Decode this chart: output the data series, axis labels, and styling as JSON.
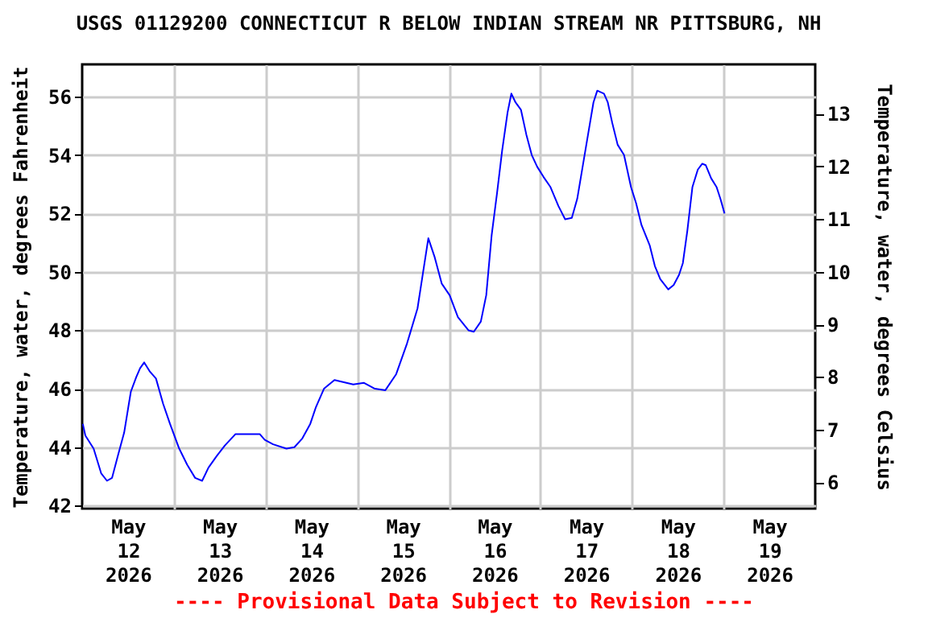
{
  "chart_data": {
    "type": "line",
    "title": "USGS 01129200 CONNECTICUT R BELOW INDIAN STREAM NR PITTSBURG, NH",
    "ylabel": "Temperature, water, degrees Fahrenheit",
    "y2label": "Temperature, water, degrees Celsius",
    "annotations": [
      "---- Provisional Data Subject to Revision ----"
    ],
    "x": [
      "2026-05-12T00:10",
      "2026-05-12T00:50",
      "2026-05-12T03:00",
      "2026-05-12T05:00",
      "2026-05-12T06:30",
      "2026-05-12T07:50",
      "2026-05-12T09:20",
      "2026-05-12T11:00",
      "2026-05-12T12:45",
      "2026-05-12T14:10",
      "2026-05-12T15:10",
      "2026-05-12T16:15",
      "2026-05-12T17:40",
      "2026-05-12T19:20",
      "2026-05-12T21:10",
      "2026-05-12T23:00",
      "2026-05-13T01:25",
      "2026-05-13T03:30",
      "2026-05-13T05:35",
      "2026-05-13T07:25",
      "2026-05-13T09:05",
      "2026-05-13T11:15",
      "2026-05-13T13:20",
      "2026-05-13T16:10",
      "2026-05-13T20:20",
      "2026-05-13T22:30",
      "2026-05-13T23:50",
      "2026-05-14T02:00",
      "2026-05-14T05:30",
      "2026-05-14T07:35",
      "2026-05-14T09:40",
      "2026-05-14T11:45",
      "2026-05-14T13:10",
      "2026-05-14T15:20",
      "2026-05-14T18:05",
      "2026-05-14T23:00",
      "2026-05-15T01:50",
      "2026-05-15T04:40",
      "2026-05-15T07:25",
      "2026-05-15T10:15",
      "2026-05-15T13:05",
      "2026-05-15T15:50",
      "2026-05-15T17:15",
      "2026-05-15T18:40",
      "2026-05-15T20:20",
      "2026-05-15T22:10",
      "2026-05-16T00:15",
      "2026-05-16T02:25",
      "2026-05-16T05:10",
      "2026-05-16T06:35",
      "2026-05-16T08:25",
      "2026-05-16T09:50",
      "2026-05-16T11:15",
      "2026-05-16T12:40",
      "2026-05-16T14:00",
      "2026-05-16T15:25",
      "2026-05-16T16:25",
      "2026-05-16T17:30",
      "2026-05-16T18:55",
      "2026-05-16T20:20",
      "2026-05-16T21:45",
      "2026-05-16T23:10",
      "2026-05-17T00:50",
      "2026-05-17T02:40",
      "2026-05-17T04:45",
      "2026-05-17T06:30",
      "2026-05-17T08:15",
      "2026-05-17T09:40",
      "2026-05-17T11:05",
      "2026-05-17T12:30",
      "2026-05-17T13:55",
      "2026-05-17T14:55",
      "2026-05-17T16:40",
      "2026-05-17T17:40",
      "2026-05-17T18:50",
      "2026-05-17T20:15",
      "2026-05-17T21:55",
      "2026-05-17T23:45",
      "2026-05-18T01:05",
      "2026-05-18T02:30",
      "2026-05-18T04:40",
      "2026-05-18T06:00",
      "2026-05-18T07:25",
      "2026-05-18T09:30",
      "2026-05-18T10:55",
      "2026-05-18T12:20",
      "2026-05-18T13:20",
      "2026-05-18T14:30",
      "2026-05-18T15:50",
      "2026-05-18T17:15",
      "2026-05-18T18:25",
      "2026-05-18T19:20",
      "2026-05-18T20:45",
      "2026-05-18T22:10",
      "2026-05-18T23:10",
      "2026-05-19T00:15"
    ],
    "series": [
      {
        "color": "#0000ff",
        "values": [
          44.8,
          44.4,
          43.95,
          43.1,
          42.85,
          42.95,
          43.7,
          44.5,
          45.9,
          46.4,
          46.7,
          46.9,
          46.6,
          46.35,
          45.5,
          44.8,
          43.95,
          43.4,
          42.95,
          42.85,
          43.3,
          43.7,
          44.05,
          44.45,
          44.45,
          44.45,
          44.25,
          44.1,
          43.95,
          44.0,
          44.3,
          44.8,
          45.35,
          46.0,
          46.3,
          46.15,
          46.2,
          46.0,
          45.95,
          46.5,
          47.55,
          48.75,
          49.95,
          51.15,
          50.5,
          49.6,
          49.2,
          48.45,
          48.0,
          47.95,
          48.3,
          49.2,
          51.25,
          52.7,
          54.15,
          55.45,
          56.1,
          55.8,
          55.55,
          54.7,
          54.0,
          53.6,
          53.25,
          52.9,
          52.25,
          51.8,
          51.85,
          52.5,
          53.6,
          54.7,
          55.8,
          56.2,
          56.1,
          55.8,
          55.1,
          54.35,
          54.0,
          52.9,
          52.35,
          51.6,
          50.9,
          50.2,
          49.75,
          49.4,
          49.55,
          49.9,
          50.3,
          51.4,
          52.9,
          53.5,
          53.7,
          53.65,
          53.2,
          52.9,
          52.5,
          52.0
        ]
      }
    ],
    "xlim": [
      "2026-05-12",
      "2026-05-20"
    ],
    "xticks": [
      {
        "value": "2026-05-12T12:00",
        "label": "May 12 2026"
      },
      {
        "value": "2026-05-13",
        "label": null
      },
      {
        "value": "2026-05-13T12:00",
        "label": "May 13 2026"
      },
      {
        "value": "2026-05-14",
        "label": null
      },
      {
        "value": "2026-05-14T12:00",
        "label": "May 14 2026"
      },
      {
        "value": "2026-05-15",
        "label": null
      },
      {
        "value": "2026-05-15T12:00",
        "label": "May 15 2026"
      },
      {
        "value": "2026-05-16",
        "label": null
      },
      {
        "value": "2026-05-16T12:00",
        "label": "May 16 2026"
      },
      {
        "value": "2026-05-17",
        "label": null
      },
      {
        "value": "2026-05-17T12:00",
        "label": "May 17 2026"
      },
      {
        "value": "2026-05-18",
        "label": null
      },
      {
        "value": "2026-05-18T12:00",
        "label": "May 18 2026"
      },
      {
        "value": "2026-05-19",
        "label": null
      },
      {
        "value": "2026-05-19T12:00",
        "label": "May 19 2026"
      }
    ],
    "ylim": [
      41.9,
      57.1
    ],
    "yticks": [
      42,
      44,
      46,
      48,
      50,
      52,
      54,
      56
    ],
    "y2lim": [
      5.5,
      13.94
    ],
    "y2ticks": [
      6,
      7,
      8,
      9,
      10,
      11,
      12,
      13
    ],
    "grid": true
  }
}
